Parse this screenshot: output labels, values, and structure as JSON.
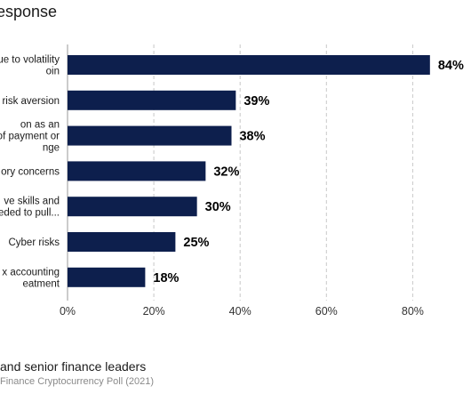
{
  "header": {
    "title": "esponse"
  },
  "footer": {
    "note": "and senior finance leaders",
    "source": "Finance Cryptocurrency Poll (2021)"
  },
  "chart_data": {
    "type": "bar",
    "orientation": "horizontal",
    "categories": [
      [
        "ue to volatility",
        "oin"
      ],
      [
        "risk aversion"
      ],
      [
        "on as an",
        "of payment or",
        "nge"
      ],
      [
        "ory concerns"
      ],
      [
        "ve skills and",
        "eeded to pull..."
      ],
      [
        "Cyber risks"
      ],
      [
        "x accounting",
        "eatment"
      ]
    ],
    "values": [
      84,
      39,
      38,
      32,
      30,
      25,
      18
    ],
    "value_labels": [
      "84%",
      "39%",
      "38%",
      "32%",
      "30%",
      "25%",
      "18%"
    ],
    "x_ticks": [
      "0%",
      "20%",
      "40%",
      "60%",
      "80%"
    ],
    "xlim": [
      0,
      100
    ],
    "grid": "vertical dashed",
    "bar_color": "#0d1f4d",
    "grid_color": "#c8c8c8"
  }
}
